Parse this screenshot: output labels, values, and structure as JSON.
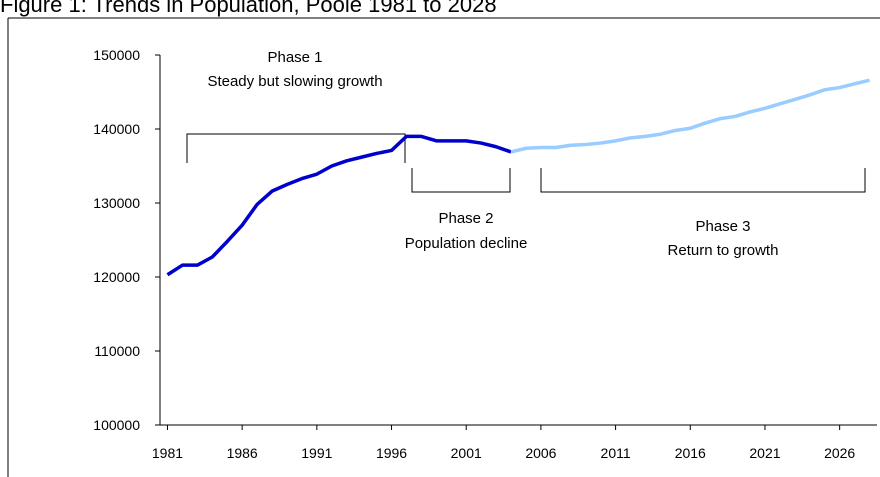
{
  "chart_data": {
    "type": "line",
    "title": "Figure 1: Trends in Population, Poole 1981 to 2028",
    "x": [
      1981,
      1982,
      1983,
      1984,
      1985,
      1986,
      1987,
      1988,
      1989,
      1990,
      1991,
      1992,
      1993,
      1994,
      1995,
      1996,
      1997,
      1998,
      1999,
      2000,
      2001,
      2002,
      2003,
      2004,
      2005,
      2006,
      2007,
      2008,
      2009,
      2010,
      2011,
      2012,
      2013,
      2014,
      2015,
      2016,
      2017,
      2018,
      2019,
      2020,
      2021,
      2022,
      2023,
      2024,
      2025,
      2026,
      2027,
      2028
    ],
    "series": [
      {
        "color": "#0000cc",
        "values": [
          120300,
          121600,
          121600,
          122700,
          124800,
          127000,
          129800,
          131600,
          132500,
          133300,
          133900,
          135000,
          135700,
          136200,
          136700,
          137100,
          139000,
          139000,
          138400,
          138400,
          138400,
          138100,
          137600,
          136900,
          null,
          null,
          null,
          null,
          null,
          null,
          null,
          null,
          null,
          null,
          null,
          null,
          null,
          null,
          null,
          null,
          null,
          null,
          null,
          null,
          null,
          null,
          null,
          null
        ]
      },
      {
        "color": "#99ccff",
        "values": [
          null,
          null,
          null,
          null,
          null,
          null,
          null,
          null,
          null,
          null,
          null,
          null,
          null,
          null,
          null,
          null,
          null,
          null,
          null,
          null,
          null,
          null,
          null,
          136900,
          137400,
          137500,
          137500,
          137800,
          137900,
          138100,
          138400,
          138800,
          139000,
          139300,
          139800,
          140100,
          140800,
          141400,
          141700,
          142300,
          142800,
          143400,
          144000,
          144600,
          145300,
          145600,
          146100,
          146600
        ]
      }
    ],
    "xlim": [
      1980.5,
      2028.5
    ],
    "xticks": [
      1981,
      1986,
      1991,
      1996,
      2001,
      2006,
      2011,
      2016,
      2021,
      2026
    ],
    "ylim": [
      100000,
      150000
    ],
    "yticks": [
      100000,
      110000,
      120000,
      130000,
      140000,
      150000
    ],
    "annotations": [
      "Phase 1",
      "Steady but slowing growth",
      "Phase 2",
      "Population decline",
      "Phase 3",
      "Return to growth"
    ]
  }
}
